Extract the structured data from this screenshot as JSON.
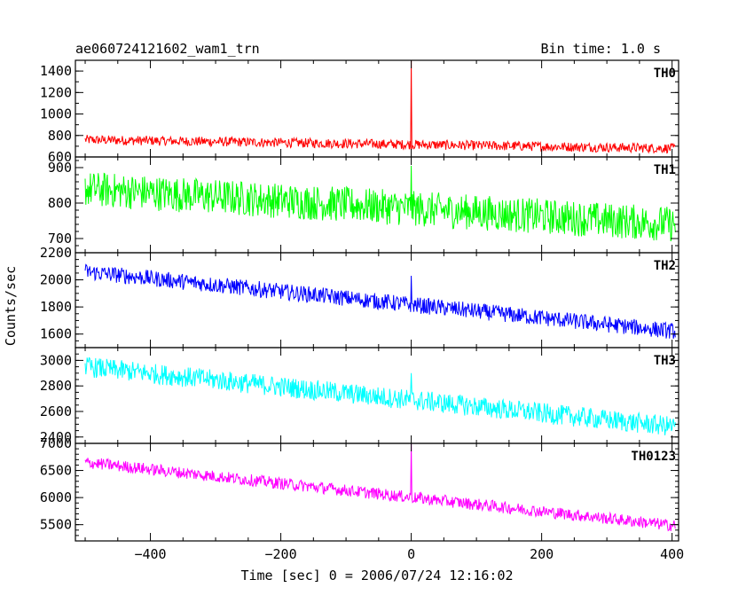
{
  "header": {
    "title": "ae060724121602_wam1_trn",
    "bin_time": "Bin time: 1.0 s"
  },
  "axes": {
    "xlabel": "Time [sec] 0 = 2006/07/24 12:16:02",
    "ylabel": "Counts/sec"
  },
  "chart_data": {
    "type": "line",
    "x_range": [
      -515,
      410
    ],
    "x_ticks": [
      -400,
      -200,
      0,
      200,
      400
    ],
    "x_tick_labels": [
      "−400",
      "−200",
      "0",
      "200",
      "400"
    ],
    "panels": [
      {
        "name": "TH0",
        "color": "#ff0000",
        "ylim": [
          600,
          1500
        ],
        "yticks": [
          600,
          800,
          1000,
          1200,
          1400
        ],
        "yticks_minor": 100,
        "mean_start": 760,
        "mean_end": 680,
        "noise_amplitude": 45,
        "spike": {
          "x": 0,
          "peak": 1500
        }
      },
      {
        "name": "TH1",
        "color": "#00ff00",
        "ylim": [
          660,
          930
        ],
        "yticks": [
          700,
          800,
          900
        ],
        "yticks_minor": 20,
        "mean_start": 840,
        "mean_end": 740,
        "noise_amplitude": 50,
        "spike": {
          "x": 0,
          "peak": 905
        }
      },
      {
        "name": "TH2",
        "color": "#0000ff",
        "ylim": [
          1500,
          2200
        ],
        "yticks": [
          1600,
          1800,
          2000,
          2200
        ],
        "yticks_minor": 50,
        "mean_start": 2060,
        "mean_end": 1620,
        "noise_amplitude": 60,
        "spike": {
          "x": 0,
          "peak": 2030
        }
      },
      {
        "name": "TH3",
        "color": "#00ffff",
        "ylim": [
          2350,
          3100
        ],
        "yticks": [
          2400,
          2600,
          2800,
          3000
        ],
        "yticks_minor": 50,
        "mean_start": 2950,
        "mean_end": 2480,
        "noise_amplitude": 80,
        "spike": {
          "x": 0,
          "peak": 2900
        }
      },
      {
        "name": "TH0123",
        "color": "#ff00ff",
        "ylim": [
          5200,
          7000
        ],
        "yticks": [
          5500,
          6000,
          6500,
          7000
        ],
        "yticks_minor": 100,
        "mean_start": 6650,
        "mean_end": 5480,
        "noise_amplitude": 110,
        "spike": {
          "x": 0,
          "peak": 7000
        }
      }
    ]
  }
}
